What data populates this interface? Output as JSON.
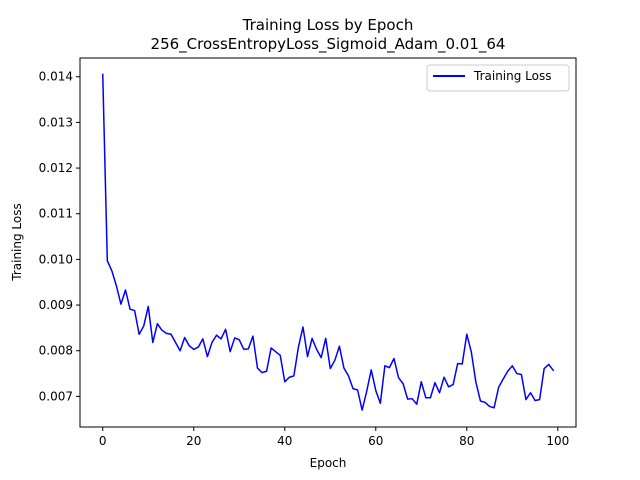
{
  "chart_data": {
    "type": "line",
    "title": "Training Loss by Epoch",
    "subtitle": "256_CrossEntropyLoss_Sigmoid_Adam_0.01_64",
    "xlabel": "Epoch",
    "ylabel": "Training Loss",
    "xlim": [
      -5,
      104
    ],
    "ylim": [
      0.00633,
      0.01441
    ],
    "xticks": [
      0,
      20,
      40,
      60,
      80,
      100
    ],
    "yticks": [
      0.007,
      0.008,
      0.009,
      0.01,
      0.011,
      0.012,
      0.013,
      0.014
    ],
    "ytick_labels": [
      "0.007",
      "0.008",
      "0.009",
      "0.010",
      "0.011",
      "0.012",
      "0.013",
      "0.014"
    ],
    "grid": false,
    "legend_position": "top-right",
    "series": [
      {
        "name": "Training Loss",
        "color": "#0000ff",
        "x": [
          0,
          1,
          2,
          3,
          4,
          5,
          6,
          7,
          8,
          9,
          10,
          11,
          12,
          13,
          14,
          15,
          16,
          17,
          18,
          19,
          20,
          21,
          22,
          23,
          24,
          25,
          26,
          27,
          28,
          29,
          30,
          31,
          32,
          33,
          34,
          35,
          36,
          37,
          38,
          39,
          40,
          41,
          42,
          43,
          44,
          45,
          46,
          47,
          48,
          49,
          50,
          51,
          52,
          53,
          54,
          55,
          56,
          57,
          58,
          59,
          60,
          61,
          62,
          63,
          64,
          65,
          66,
          67,
          68,
          69,
          70,
          71,
          72,
          73,
          74,
          75,
          76,
          77,
          78,
          79,
          80,
          81,
          82,
          83,
          84,
          85,
          86,
          87,
          88,
          89,
          90,
          91,
          92,
          93,
          94,
          95,
          96,
          97,
          98,
          99
        ],
        "values": [
          0.01405,
          0.00997,
          0.00975,
          0.00942,
          0.00902,
          0.00933,
          0.00891,
          0.00888,
          0.00836,
          0.00854,
          0.00897,
          0.00818,
          0.00859,
          0.00845,
          0.00838,
          0.00836,
          0.00818,
          0.008,
          0.00829,
          0.00811,
          0.00803,
          0.00808,
          0.00826,
          0.00787,
          0.00818,
          0.00834,
          0.00826,
          0.00847,
          0.00798,
          0.00828,
          0.00824,
          0.00803,
          0.00804,
          0.00832,
          0.00762,
          0.00752,
          0.00755,
          0.00806,
          0.00798,
          0.0079,
          0.00732,
          0.00742,
          0.00745,
          0.00808,
          0.00852,
          0.00787,
          0.00827,
          0.00803,
          0.00785,
          0.00827,
          0.00761,
          0.00779,
          0.0081,
          0.00762,
          0.00745,
          0.00717,
          0.00714,
          0.0067,
          0.00711,
          0.00758,
          0.00713,
          0.00685,
          0.00767,
          0.00763,
          0.00783,
          0.00741,
          0.00728,
          0.00694,
          0.00695,
          0.00683,
          0.00732,
          0.00697,
          0.00697,
          0.0073,
          0.00708,
          0.00742,
          0.00721,
          0.00726,
          0.00772,
          0.00771,
          0.00836,
          0.00797,
          0.00731,
          0.0069,
          0.00687,
          0.00678,
          0.00675,
          0.0072,
          0.00738,
          0.00755,
          0.00767,
          0.0075,
          0.00748,
          0.00693,
          0.00708,
          0.00691,
          0.00693,
          0.00761,
          0.0077,
          0.00757
        ]
      }
    ]
  }
}
